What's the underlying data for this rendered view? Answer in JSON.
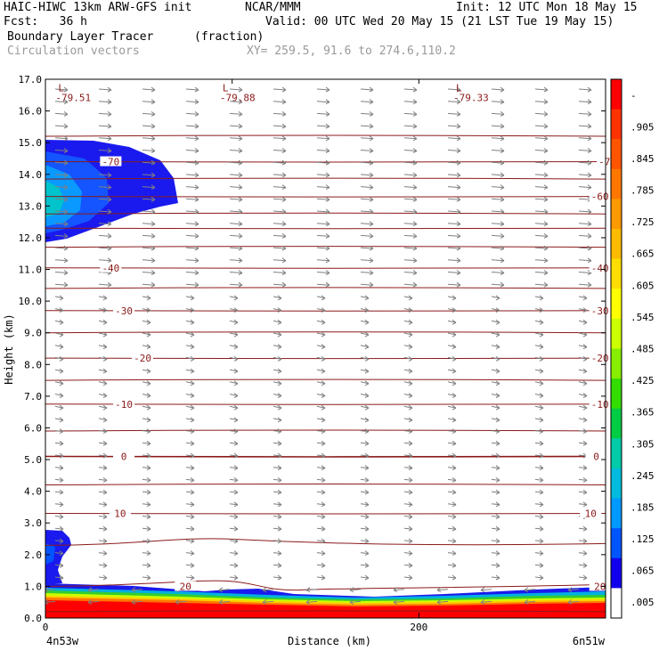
{
  "header": {
    "model": "HAIC-HIWC 13km ARW-GFS init",
    "center": "NCAR/MMM",
    "init": "Init: 12 UTC Mon 18 May 15",
    "fcst": "Fcst:   36 h",
    "valid": "Valid: 00 UTC Wed 20 May 15 (21 LST Tue 19 May 15)",
    "field1": "Boundary Layer Tracer",
    "field1_units": "(fraction)",
    "field2": "Circulation vectors",
    "xy": "XY= 259.5, 91.6 to 274.6,110.2"
  },
  "colors": {
    "contour": "#8b1a1a",
    "vector": "#808080",
    "field2_text": "#9a9a9a"
  },
  "chart_data": {
    "type": "heatmap",
    "xlabel": "Distance (km)",
    "ylabel": "Height (km)",
    "ylim": [
      0,
      17
    ],
    "xlim": [
      0,
      300
    ],
    "y_ticks": [
      "0.0",
      "1.0",
      "2.0",
      "3.0",
      "4.0",
      "5.0",
      "6.0",
      "7.0",
      "8.0",
      "9.0",
      "10.0",
      "11.0",
      "12.0",
      "13.0",
      "14.0",
      "15.0",
      "16.0",
      "17.0"
    ],
    "x_ticks": [
      {
        "value": 0,
        "label": "0"
      },
      {
        "value": 200,
        "label": "200"
      }
    ],
    "x_end_labels": {
      "left": "4n53w",
      "right": "6n51w"
    },
    "colorbar": {
      "labels": [
        "-",
        ".905",
        ".845",
        ".785",
        ".725",
        ".665",
        ".605",
        ".545",
        ".485",
        ".425",
        ".365",
        ".305",
        ".245",
        ".185",
        ".125",
        ".065",
        ".005"
      ],
      "colors": [
        "#ff0000",
        "#ff3300",
        "#ff5500",
        "#ff7700",
        "#ff9900",
        "#ffbb00",
        "#ffdd00",
        "#ffff00",
        "#ccff00",
        "#88ee00",
        "#33dd00",
        "#00cc44",
        "#00ccaa",
        "#00bbdd",
        "#0099ff",
        "#0055ff",
        "#1100ee",
        "#ffffff"
      ]
    },
    "contours": [
      {
        "label": "20",
        "y": 1.0,
        "label_x": [
          75,
          297
        ]
      },
      {
        "label": "10",
        "y": 3.3,
        "label_x": [
          40,
          292
        ]
      },
      {
        "label": "0",
        "y": 5.1,
        "label_x": [
          42,
          295
        ]
      },
      {
        "label": "-10",
        "y": 6.75,
        "label_x": [
          42,
          297
        ]
      },
      {
        "label": "-20",
        "y": 8.2,
        "label_x": [
          52,
          297
        ]
      },
      {
        "label": "-30",
        "y": 9.7,
        "label_x": [
          42,
          297
        ]
      },
      {
        "label": "-40",
        "y": 11.05,
        "label_x": [
          35,
          297
        ]
      },
      {
        "label": "-60",
        "y": 13.3,
        "label_x": [
          297
        ]
      },
      {
        "label": "-70",
        "y": 14.4,
        "label_x": [
          35,
          301
        ]
      }
    ],
    "lows": [
      {
        "label": "L",
        "value": "-79.51",
        "x": 4,
        "y": 16.9
      },
      {
        "label": "L",
        "value": "-79.88",
        "x": 92,
        "y": 16.9
      },
      {
        "label": "L",
        "value": "-79.33",
        "x": 217,
        "y": 16.9
      }
    ]
  }
}
